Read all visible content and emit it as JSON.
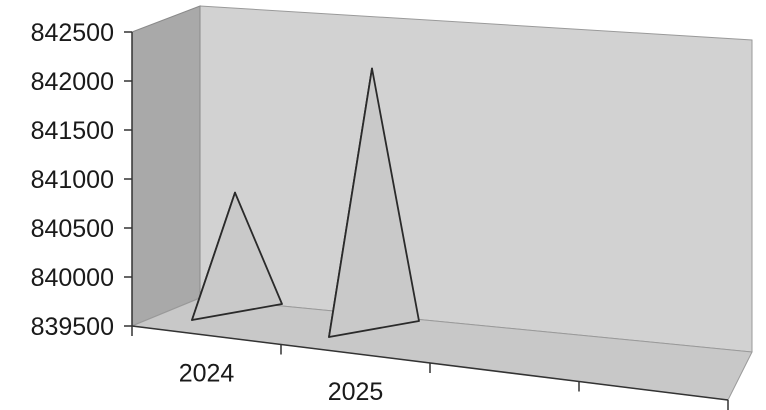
{
  "chart_data": {
    "type": "bar",
    "bar_shape": "3d-pyramid",
    "categories": [
      "2024",
      "2025"
    ],
    "series": [
      {
        "values": [
          840750,
          842020
        ]
      }
    ],
    "title": "",
    "xlabel": "",
    "ylabel": "",
    "ylim": [
      839500,
      842500
    ],
    "yticks": [
      "842500",
      "842000",
      "841500",
      "841000",
      "840500",
      "840000",
      "839500"
    ],
    "grid": false,
    "legend": "none",
    "colors": {
      "back_wall": "#d2d2d2",
      "side_wall": "#a9a9a9",
      "floor": "#c8c8c8",
      "pyramid_light": "#f4f4f4",
      "pyramid_shade": "#c9c9c9",
      "outline": "#2a2a2a"
    }
  }
}
